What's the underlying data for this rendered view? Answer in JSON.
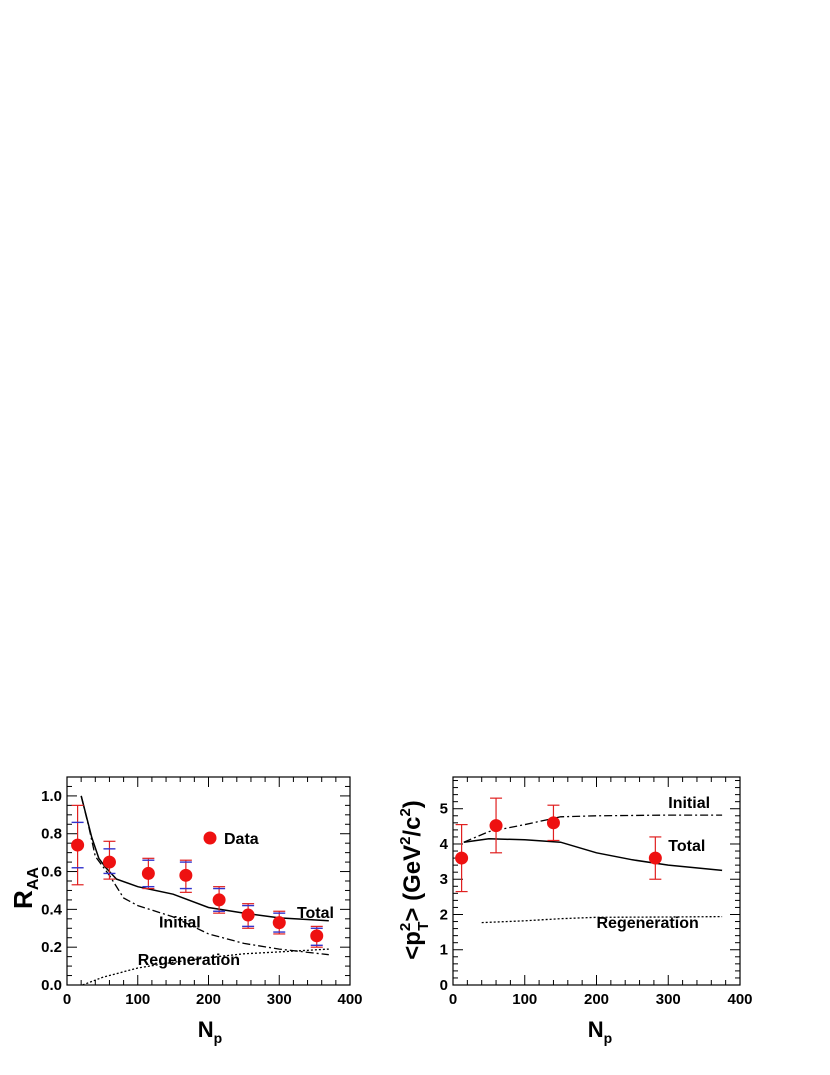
{
  "chart_data": [
    {
      "type": "scatter",
      "id": "left",
      "xlabel": "N",
      "xlabel_sub": "p",
      "ylabel": "R",
      "ylabel_sub": "AA",
      "xlim": [
        0,
        400
      ],
      "ylim": [
        0,
        1.1
      ],
      "xticks": [
        0,
        100,
        200,
        300,
        400
      ],
      "xtick_labels": [
        "0",
        "100",
        "200",
        "300",
        "400"
      ],
      "yticks": [
        0,
        0.2,
        0.4,
        0.6,
        0.8,
        1.0
      ],
      "ytick_labels": [
        "0.0",
        "0.2",
        "0.4",
        "0.6",
        "0.8",
        "1.0"
      ],
      "legend": {
        "label": "Data"
      },
      "data_points": [
        {
          "x": 15,
          "y": 0.74,
          "stat_lo": 0.62,
          "stat_hi": 0.86,
          "sys_lo": 0.53,
          "sys_hi": 0.95
        },
        {
          "x": 60,
          "y": 0.65,
          "stat_lo": 0.59,
          "stat_hi": 0.72,
          "sys_lo": 0.56,
          "sys_hi": 0.76
        },
        {
          "x": 115,
          "y": 0.59,
          "stat_lo": 0.52,
          "stat_hi": 0.66,
          "sys_lo": 0.51,
          "sys_hi": 0.67
        },
        {
          "x": 168,
          "y": 0.58,
          "stat_lo": 0.51,
          "stat_hi": 0.65,
          "sys_lo": 0.49,
          "sys_hi": 0.66
        },
        {
          "x": 215,
          "y": 0.45,
          "stat_lo": 0.39,
          "stat_hi": 0.51,
          "sys_lo": 0.38,
          "sys_hi": 0.52
        },
        {
          "x": 256,
          "y": 0.37,
          "stat_lo": 0.31,
          "stat_hi": 0.42,
          "sys_lo": 0.3,
          "sys_hi": 0.43
        },
        {
          "x": 300,
          "y": 0.33,
          "stat_lo": 0.28,
          "stat_hi": 0.38,
          "sys_lo": 0.27,
          "sys_hi": 0.39
        },
        {
          "x": 353,
          "y": 0.26,
          "stat_lo": 0.21,
          "stat_hi": 0.3,
          "sys_lo": 0.2,
          "sys_hi": 0.31
        }
      ],
      "curves": [
        {
          "name": "Total",
          "style": "solid",
          "points": [
            [
              20,
              1.0
            ],
            [
              35,
              0.78
            ],
            [
              45,
              0.67
            ],
            [
              55,
              0.62
            ],
            [
              70,
              0.56
            ],
            [
              100,
              0.52
            ],
            [
              150,
              0.48
            ],
            [
              200,
              0.41
            ],
            [
              250,
              0.38
            ],
            [
              300,
              0.355
            ],
            [
              370,
              0.34
            ]
          ]
        },
        {
          "name": "Initial",
          "style": "dashdot",
          "points": [
            [
              20,
              1.0
            ],
            [
              30,
              0.85
            ],
            [
              40,
              0.68
            ],
            [
              60,
              0.58
            ],
            [
              80,
              0.46
            ],
            [
              100,
              0.42
            ],
            [
              150,
              0.36
            ],
            [
              200,
              0.27
            ],
            [
              250,
              0.22
            ],
            [
              300,
              0.19
            ],
            [
              370,
              0.16
            ]
          ]
        },
        {
          "name": "Regeneration",
          "style": "dotted",
          "points": [
            [
              22,
              0.0
            ],
            [
              50,
              0.04
            ],
            [
              100,
              0.09
            ],
            [
              150,
              0.12
            ],
            [
              200,
              0.145
            ],
            [
              250,
              0.165
            ],
            [
              300,
              0.175
            ],
            [
              370,
              0.19
            ]
          ]
        }
      ],
      "annotations": [
        {
          "text": "Total",
          "x": 325,
          "y": 0.355
        },
        {
          "text": "Initial",
          "x": 130,
          "y": 0.305
        },
        {
          "text": "Regeneration",
          "x": 100,
          "y": 0.105
        }
      ]
    },
    {
      "type": "scatter",
      "id": "right",
      "xlabel": "N",
      "xlabel_sub": "p",
      "ylabel": "<p",
      "ylabel_sup": "2",
      "ylabel_sub": "T",
      "ylabel_rest": "> (GeV",
      "ylabel_sup2": "2",
      "ylabel_rest2": "/c",
      "ylabel_sup3": "2",
      "ylabel_end": ")",
      "xlim": [
        0,
        400
      ],
      "ylim": [
        0,
        5.9
      ],
      "xticks": [
        0,
        100,
        200,
        300,
        400
      ],
      "xtick_labels": [
        "0",
        "100",
        "200",
        "300",
        "400"
      ],
      "yticks": [
        0,
        1,
        2,
        3,
        4,
        5
      ],
      "ytick_labels": [
        "0",
        "1",
        "2",
        "3",
        "4",
        "5"
      ],
      "data_points": [
        {
          "x": 12,
          "y": 3.6,
          "sys_lo": 2.65,
          "sys_hi": 4.55
        },
        {
          "x": 60,
          "y": 4.52,
          "sys_lo": 3.75,
          "sys_hi": 5.3
        },
        {
          "x": 140,
          "y": 4.6,
          "sys_lo": 4.1,
          "sys_hi": 5.1
        },
        {
          "x": 282,
          "y": 3.6,
          "sys_lo": 3.0,
          "sys_hi": 4.2
        }
      ],
      "curves": [
        {
          "name": "Initial",
          "style": "dashdot",
          "points": [
            [
              15,
              4.05
            ],
            [
              50,
              4.35
            ],
            [
              100,
              4.55
            ],
            [
              150,
              4.77
            ],
            [
              200,
              4.8
            ],
            [
              300,
              4.82
            ],
            [
              375,
              4.82
            ]
          ]
        },
        {
          "name": "Total",
          "style": "solid",
          "points": [
            [
              15,
              4.05
            ],
            [
              50,
              4.15
            ],
            [
              100,
              4.12
            ],
            [
              150,
              4.05
            ],
            [
              200,
              3.75
            ],
            [
              250,
              3.55
            ],
            [
              300,
              3.4
            ],
            [
              375,
              3.25
            ]
          ]
        },
        {
          "name": "Regeneration",
          "style": "dotted",
          "points": [
            [
              40,
              1.77
            ],
            [
              100,
              1.82
            ],
            [
              150,
              1.88
            ],
            [
              200,
              1.92
            ],
            [
              300,
              1.93
            ],
            [
              375,
              1.94
            ]
          ]
        }
      ],
      "annotations": [
        {
          "text": "Initial",
          "x": 300,
          "y": 5.02
        },
        {
          "text": "Total",
          "x": 300,
          "y": 3.8
        },
        {
          "text": "Regeneration",
          "x": 200,
          "y": 1.62
        }
      ]
    }
  ]
}
